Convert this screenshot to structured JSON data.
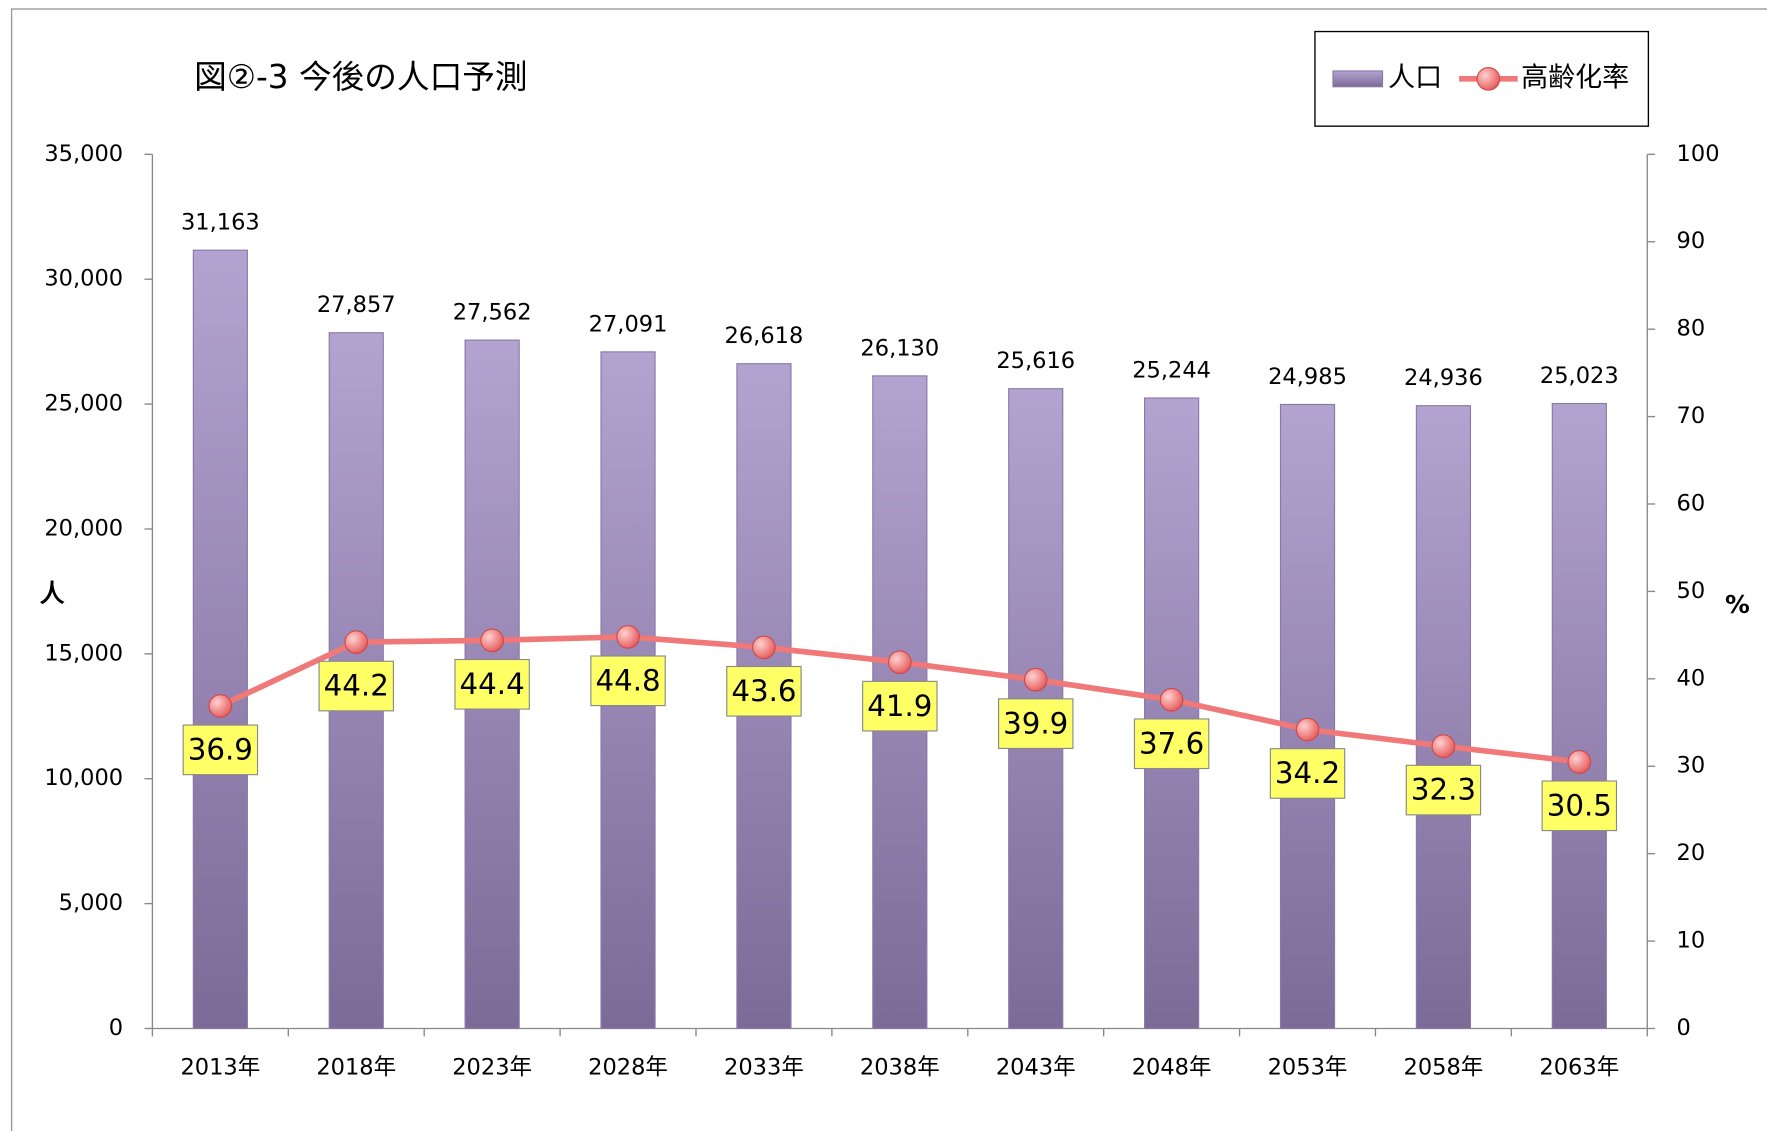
{
  "chart_data": {
    "type": "bar_line",
    "title": "図②-3 今後の人口予測",
    "y_label": "人",
    "y2_label": "%",
    "categories": [
      "2013年",
      "2018年",
      "2023年",
      "2028年",
      "2033年",
      "2038年",
      "2043年",
      "2048年",
      "2053年",
      "2058年",
      "2063年"
    ],
    "series": [
      {
        "name": "人口",
        "type": "bar",
        "color": "#9d8bbb",
        "values": [
          31163,
          27857,
          27562,
          27091,
          26618,
          26130,
          25616,
          25244,
          24985,
          24936,
          25023
        ],
        "value_labels": [
          "31,163",
          "27,857",
          "27,562",
          "27,091",
          "26,618",
          "26,130",
          "25,616",
          "25,244",
          "24,985",
          "24,936",
          "25,023"
        ]
      },
      {
        "name": "高齢化率",
        "type": "line",
        "axis": "y2",
        "color": "#f07878",
        "values": [
          36.9,
          44.2,
          44.4,
          44.8,
          43.6,
          41.9,
          39.9,
          37.6,
          34.2,
          32.3,
          30.5
        ]
      }
    ],
    "ylim": [
      0,
      35000
    ],
    "yticks": [
      0,
      {
        "value": 5000,
        "label": "5,000"
      },
      {
        "value": 10000,
        "label": "10,000"
      },
      {
        "value": 15000,
        "label": "15,000"
      },
      {
        "value": 20000,
        "label": "20,000"
      },
      {
        "value": 25000,
        "label": "25,000"
      },
      {
        "value": 30000,
        "label": "30,000"
      },
      {
        "value": 35000,
        "label": "35,000"
      }
    ],
    "y2lim": [
      0,
      100
    ],
    "y2ticks": [
      0,
      10,
      20,
      30,
      40,
      50,
      60,
      70,
      80,
      90,
      100
    ],
    "legend": "top-right",
    "grid": false
  }
}
